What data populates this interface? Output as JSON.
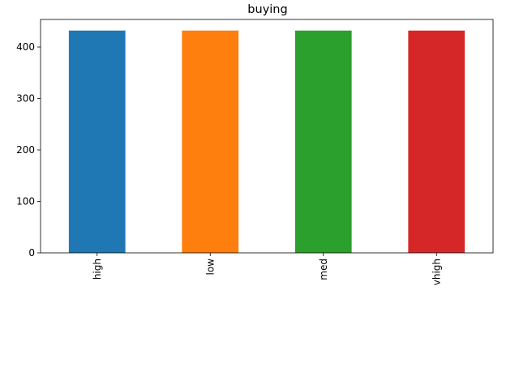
{
  "chart_data": {
    "type": "bar",
    "title": "buying",
    "xlabel": "",
    "ylabel": "",
    "categories": [
      "high",
      "low",
      "med",
      "vhigh"
    ],
    "values": [
      432,
      432,
      432,
      432
    ],
    "colors": [
      "#1f77b4",
      "#ff7f0e",
      "#2ca02c",
      "#d62728"
    ],
    "ylim": [
      0,
      453.6
    ],
    "yticks": [
      0,
      100,
      200,
      300,
      400
    ],
    "xtick_rotation": 90,
    "grid": false,
    "legend": "none"
  }
}
